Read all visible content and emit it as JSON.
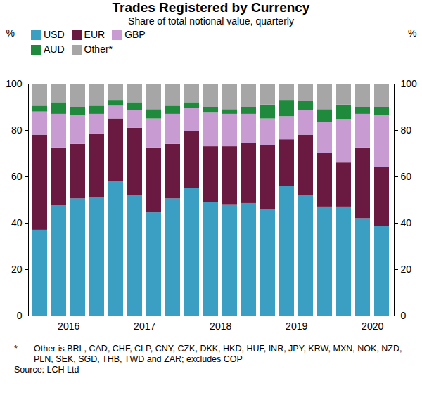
{
  "chart_data": {
    "type": "bar",
    "stacked": true,
    "title": "Trades Registered by Currency",
    "subtitle": "Share of total notional value, quarterly",
    "ylabel": "%",
    "categories": [
      null,
      "2016",
      null,
      null,
      null,
      "2017",
      null,
      null,
      null,
      "2018",
      null,
      null,
      null,
      "2019",
      null,
      null,
      null,
      "2020",
      null
    ],
    "series": [
      {
        "name": "USD",
        "color": "#3a9fc2",
        "values": [
          37,
          47.5,
          50.5,
          51,
          58,
          52,
          44.5,
          50.5,
          55,
          49,
          48,
          48.5,
          46,
          56,
          52,
          47,
          47,
          42,
          38.5
        ]
      },
      {
        "name": "EUR",
        "color": "#6a1a40",
        "values": [
          41,
          25,
          23.5,
          27.5,
          27,
          29,
          28,
          23.5,
          24.5,
          24,
          25,
          26,
          27.5,
          20,
          26,
          23,
          19,
          30.5,
          25.5
        ]
      },
      {
        "name": "GBP",
        "color": "#c89bd3",
        "values": [
          10,
          14.5,
          12.5,
          8.5,
          5.5,
          7.5,
          12.5,
          13,
          10,
          14.5,
          14,
          12.5,
          11.5,
          10,
          10.5,
          13.5,
          18.5,
          14.5,
          22.5
        ]
      },
      {
        "name": "AUD",
        "color": "#1f8a3b",
        "values": [
          2.5,
          5,
          3.5,
          3.5,
          2.5,
          3.5,
          4,
          3.5,
          2.5,
          2.5,
          2,
          3,
          6,
          7,
          4,
          5.5,
          6.5,
          3,
          3.5
        ]
      },
      {
        "name": "Other*",
        "color": "#a6a6a6",
        "values": [
          9.5,
          8,
          10,
          9.5,
          7,
          8,
          11,
          9.5,
          8,
          10,
          11,
          10,
          9,
          7,
          7.5,
          11,
          9,
          10,
          10
        ]
      }
    ],
    "ylim": [
      0,
      100
    ],
    "yticks": [
      0,
      20,
      40,
      60,
      80,
      100
    ],
    "grid": false,
    "legend": "top-left",
    "footnote": "Other is BRL, CAD, CHF, CLP, CNY, CZK, DKK, HKD, HUF, INR, JPY, KRW, MXN, NOK, NZD, PLN, SEK, SGD, THB, TWD and ZAR; excludes COP",
    "footnote_marker": "*",
    "source": "Source: LCH Ltd"
  }
}
